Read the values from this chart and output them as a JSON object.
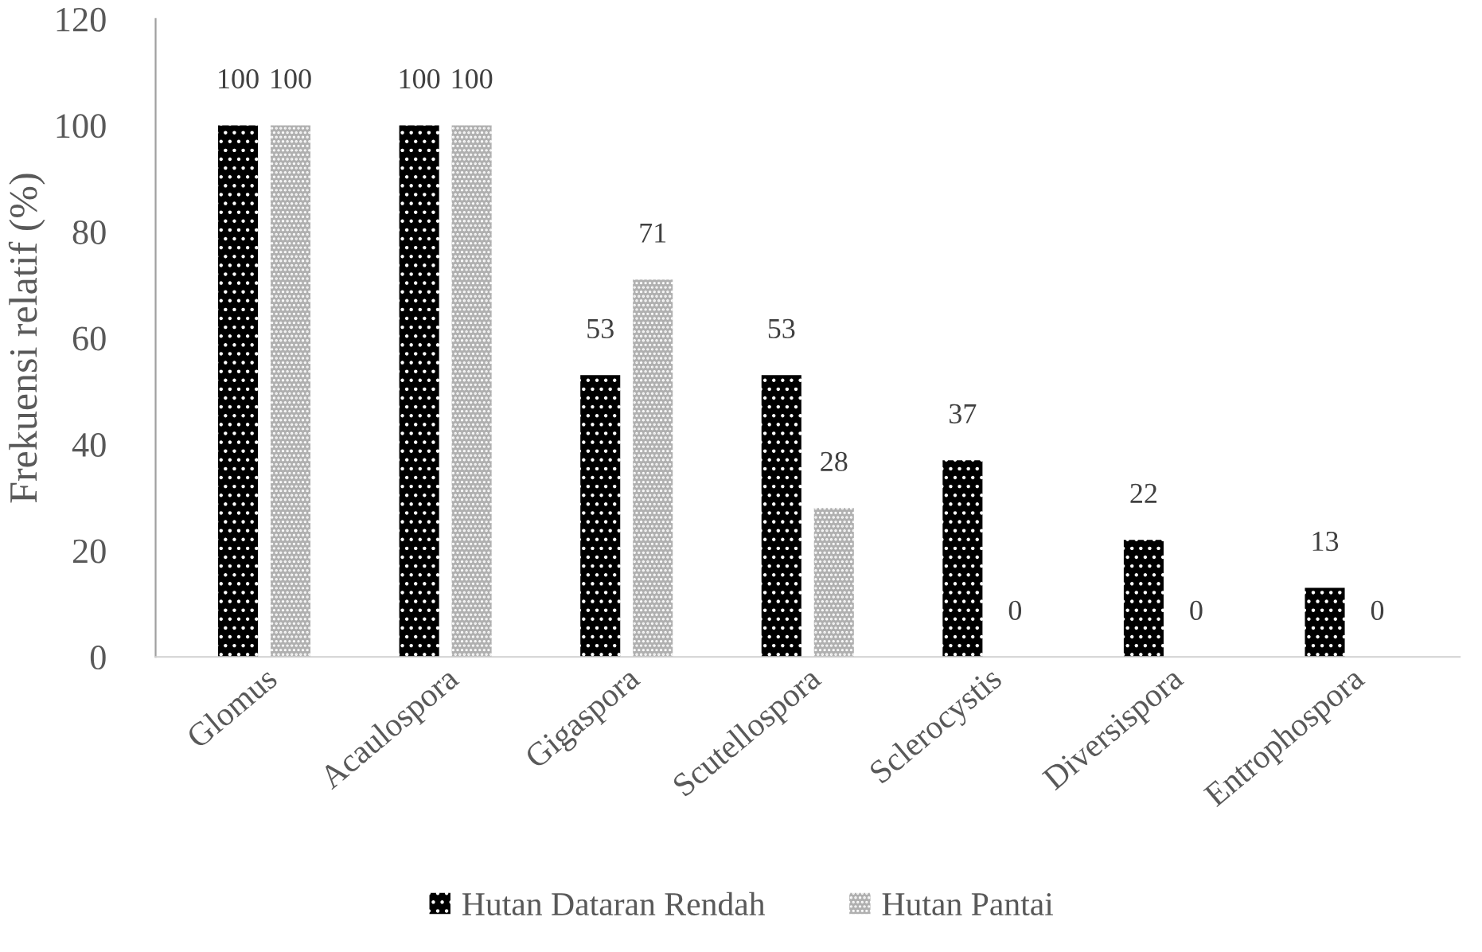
{
  "chart_data": {
    "type": "bar",
    "ylabel": "Frekuensi relatif (%)",
    "categories": [
      "Glomus",
      "Acaulospora",
      "Gigaspora",
      "Scutellospora",
      "Sclerocystis",
      "Diversispora",
      "Entrophospora"
    ],
    "series": [
      {
        "name": "Hutan Dataran Rendah",
        "color": "#000000",
        "values": [
          100,
          100,
          53,
          53,
          37,
          22,
          13
        ]
      },
      {
        "name": "Hutan Pantai",
        "color": "#b0b0b0",
        "values": [
          100,
          100,
          71,
          28,
          0,
          0,
          0
        ]
      }
    ],
    "ylim": [
      0,
      120
    ],
    "yticks": [
      0,
      20,
      40,
      60,
      80,
      100,
      120
    ],
    "grid": false,
    "legend": "bottom",
    "data_labels": true
  }
}
